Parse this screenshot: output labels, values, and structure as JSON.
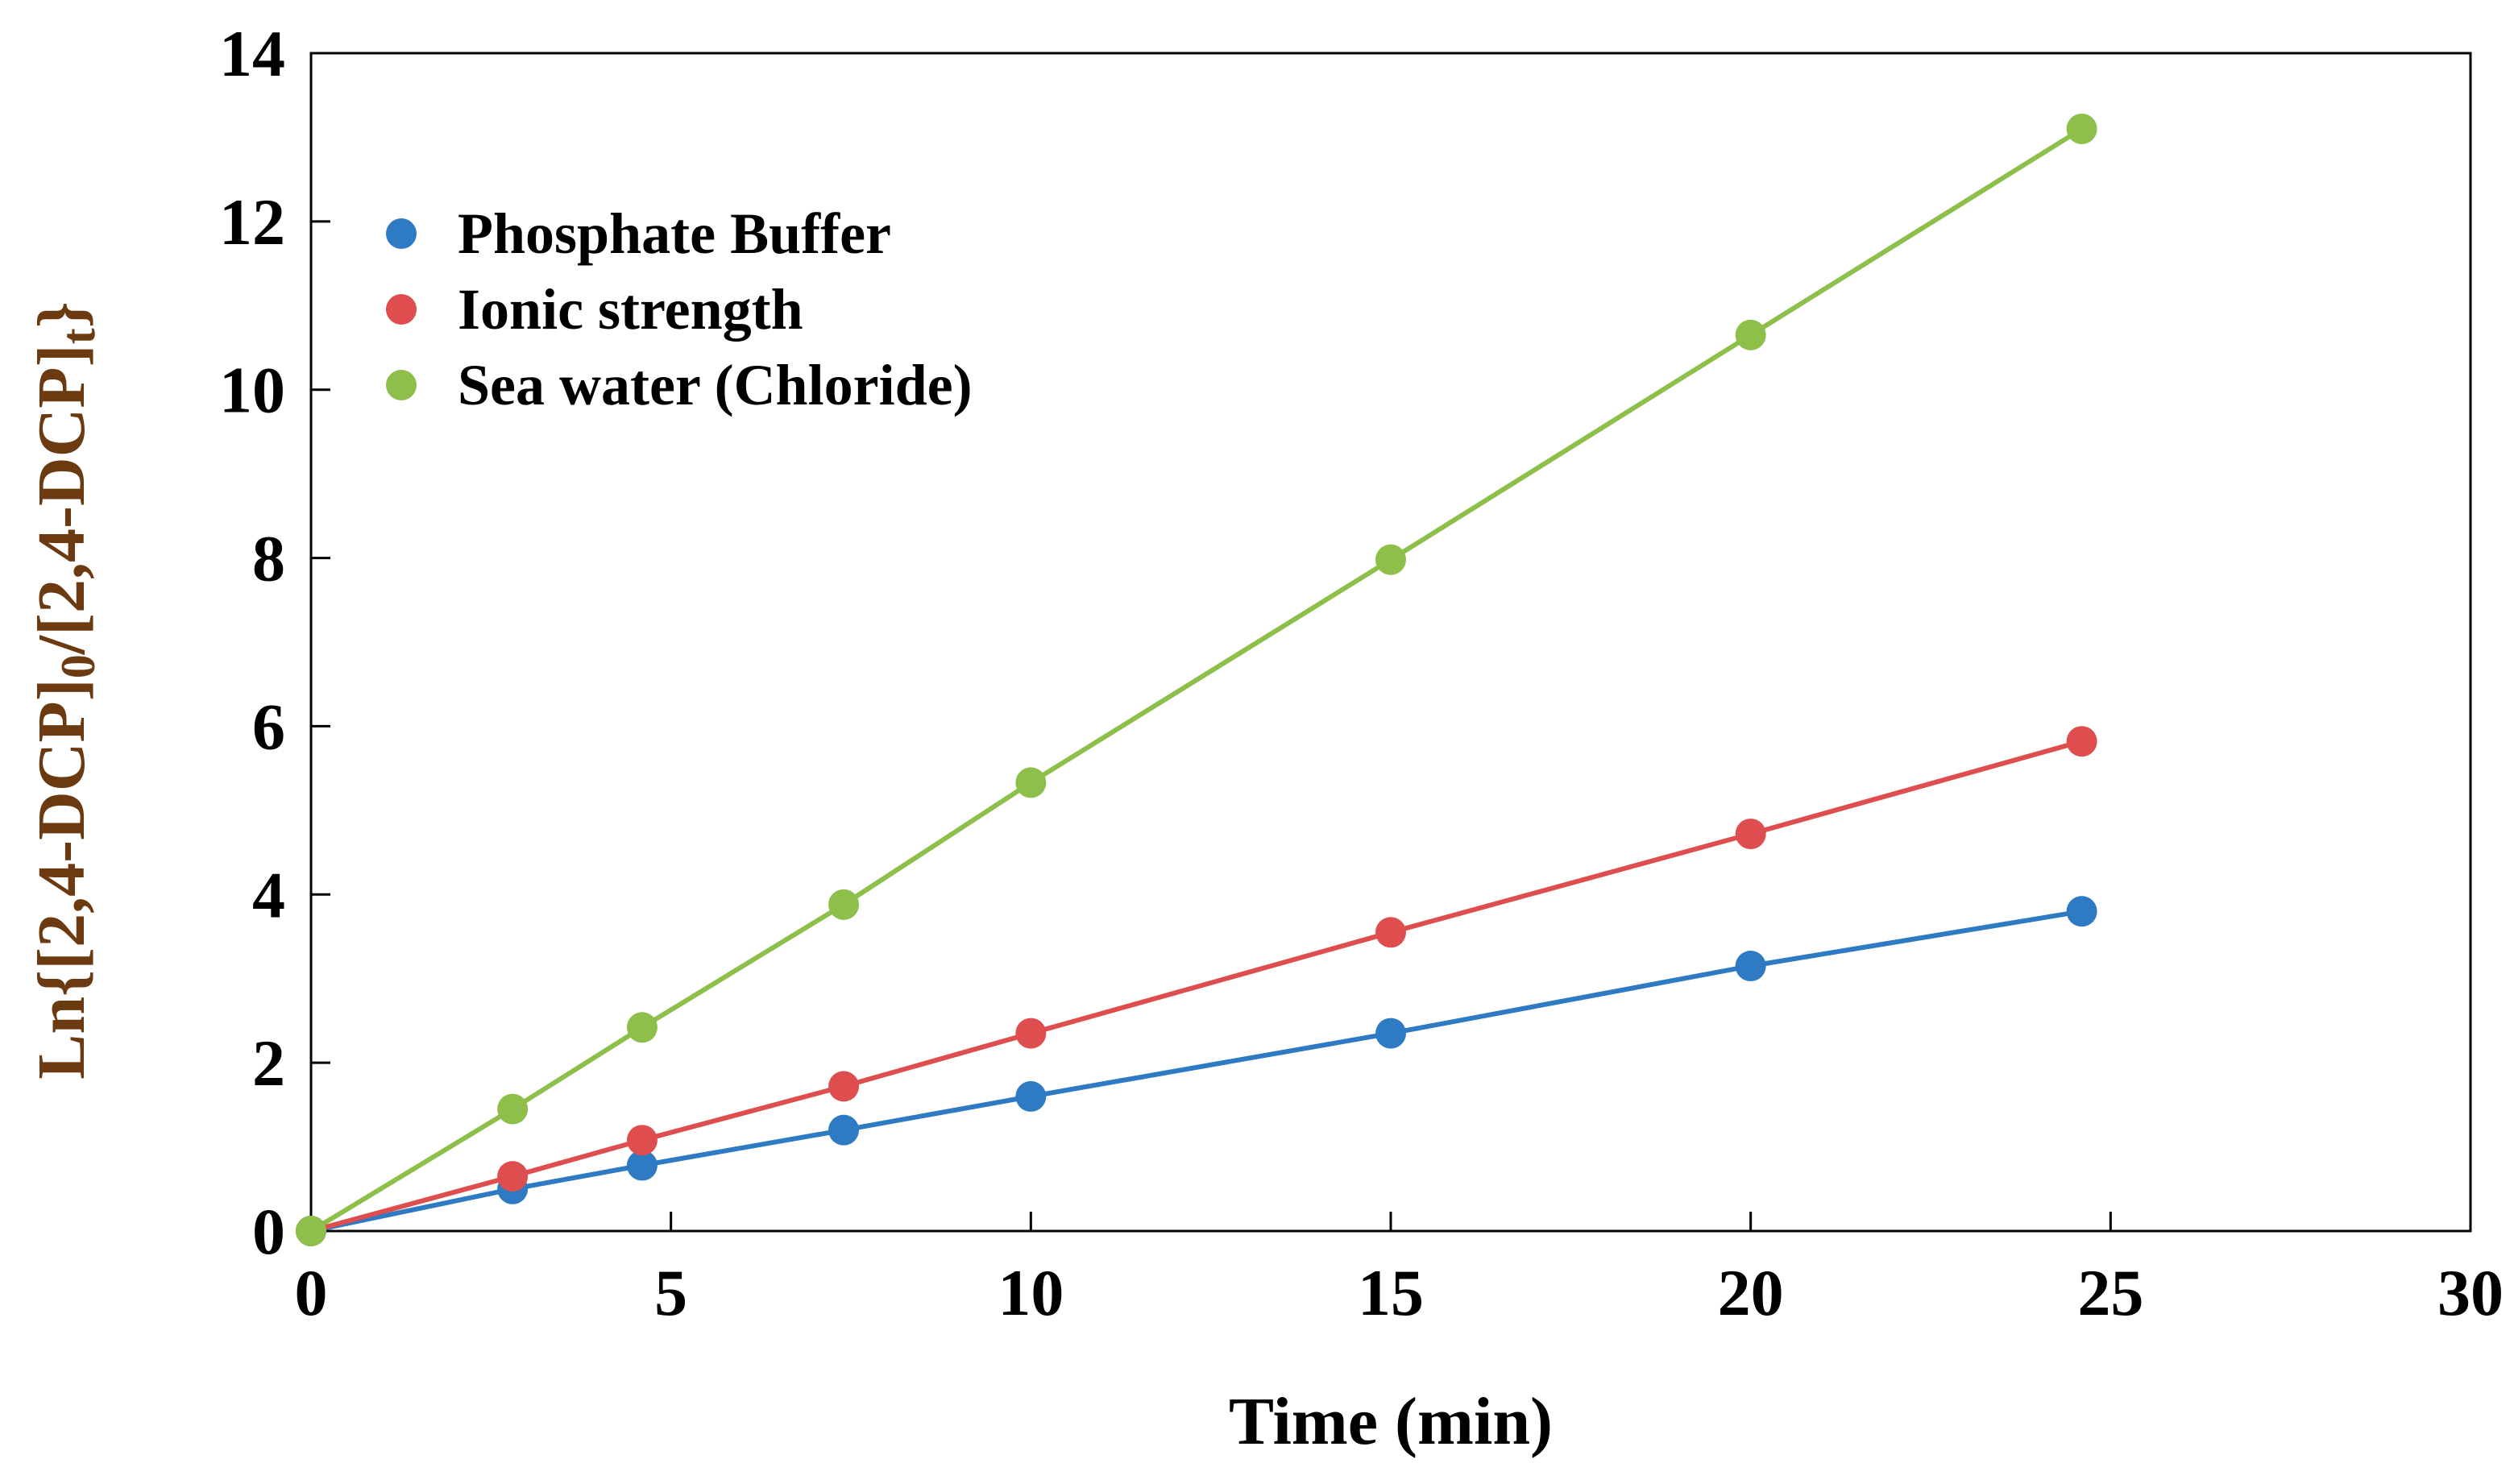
{
  "chart_data": {
    "type": "line",
    "title": "",
    "xlabel": "Time (min)",
    "ylabel": "Ln{[2,4-DCP]0/[2,4-DCP]t}",
    "ylabel_parts": {
      "main": "Ln{[2,4-DCP]",
      "sub0": "0",
      "mid": "/[2,4-DCP]",
      "subt": "t",
      "end": "}"
    },
    "xlim": [
      0,
      30
    ],
    "ylim": [
      0,
      14
    ],
    "xticks": [
      "0",
      "5",
      "10",
      "15",
      "20",
      "25",
      "30"
    ],
    "yticks": [
      "0",
      "2",
      "4",
      "6",
      "8",
      "10",
      "12",
      "14"
    ],
    "grid": false,
    "legend_position": "top-left",
    "x": [
      0,
      2.8,
      4.6,
      7.4,
      10,
      15,
      20,
      24.6
    ],
    "series": [
      {
        "name": "Phosphate Buffer",
        "color": "#2e7bc4",
        "values": [
          0,
          0.5,
          0.78,
          1.2,
          1.6,
          2.35,
          3.15,
          3.8
        ]
      },
      {
        "name": "Ionic strength",
        "color": "#df4e4e",
        "values": [
          0,
          0.65,
          1.08,
          1.72,
          2.35,
          3.55,
          4.72,
          5.82
        ]
      },
      {
        "name": "Sea water (Chloride)",
        "color": "#8ebf4a",
        "values": [
          0,
          1.45,
          2.42,
          3.88,
          5.33,
          7.98,
          10.65,
          13.1
        ]
      }
    ]
  }
}
